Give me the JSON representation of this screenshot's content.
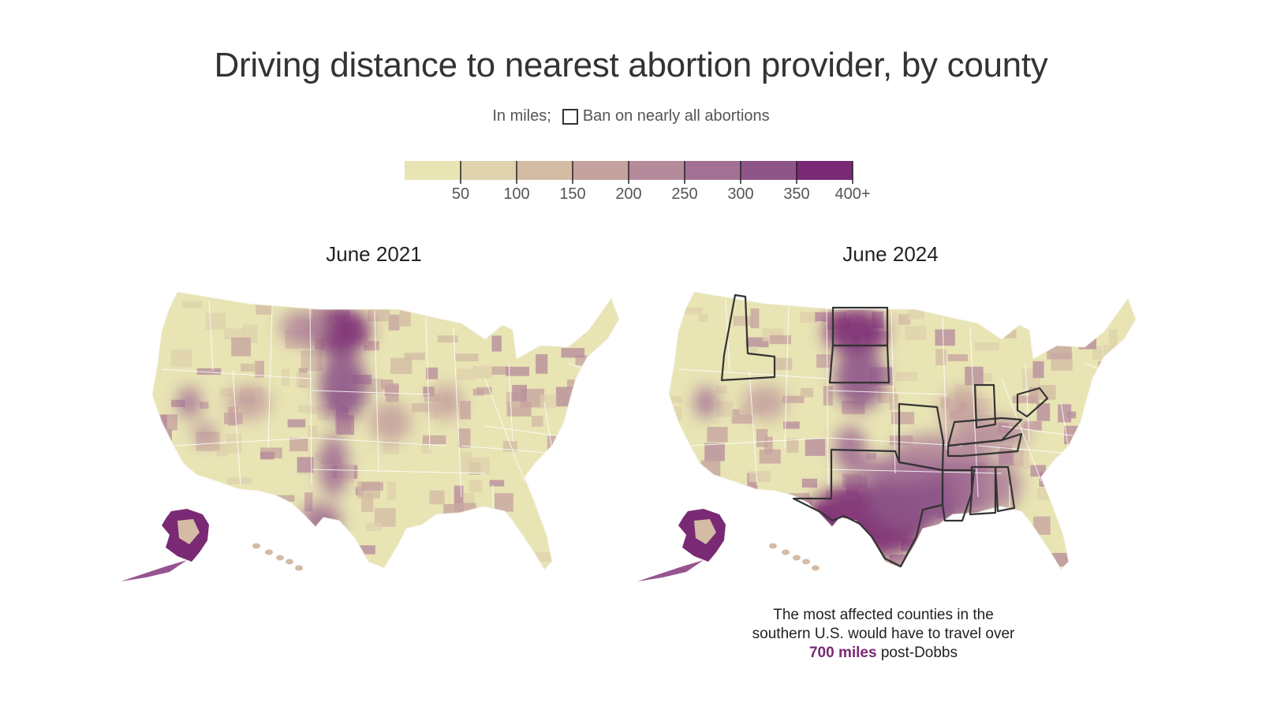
{
  "title": "Driving distance to nearest abortion provider, by county",
  "subtitle": {
    "units": "In miles;",
    "ban_label": "Ban on nearly all abortions"
  },
  "legend": {
    "ticks": [
      "50",
      "100",
      "150",
      "200",
      "250",
      "300",
      "350",
      "400+"
    ],
    "colors": [
      "#e8e4b4",
      "#dfd2ac",
      "#d3bba4",
      "#c5a29f",
      "#b58a9b",
      "#a37095",
      "#8e5589",
      "#7a2a74"
    ]
  },
  "panels": [
    {
      "title": "June 2021"
    },
    {
      "title": "June 2024"
    }
  ],
  "annotation": {
    "line1": "The most affected counties in the",
    "line2": "southern U.S. would have to travel over",
    "highlight": "700 miles",
    "tail": " post-Dobbs"
  },
  "colors": {
    "border": "#333333",
    "highlight": "#7a2a74"
  }
}
